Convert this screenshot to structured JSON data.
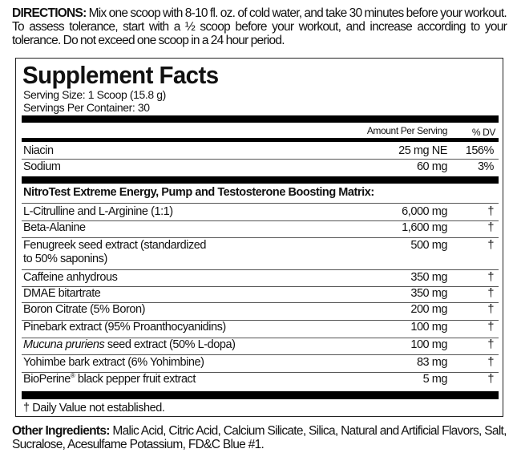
{
  "directions": {
    "label": "DIRECTIONS:",
    "text": "Mix one scoop with 8-10 fl. oz. of cold water, and take 30 minutes before your workout. To assess tolerance, start with a ½ scoop before your workout, and increase according to your tolerance. Do not exceed one scoop in a 24 hour period."
  },
  "facts": {
    "title": "Supplement Facts",
    "serving_size": "Serving Size: 1 Scoop (15.8 g)",
    "servings_per_container": "Servings Per Container: 30",
    "col_amount": "Amount Per Serving",
    "col_dv": "% DV",
    "nutrients": [
      {
        "name": "Niacin",
        "amount": "25 mg NE",
        "dv": "156%"
      },
      {
        "name": "Sodium",
        "amount": "60 mg",
        "dv": "3%"
      }
    ],
    "matrix_heading": "NitroTest Extreme Energy, Pump and Testosterone Boosting Matrix:",
    "ingredients": [
      {
        "name": "L-Citrulline and L-Arginine (1:1)",
        "amount": "6,000 mg",
        "dv": "†"
      },
      {
        "name": "Beta-Alanine",
        "amount": "1,600 mg",
        "dv": "†"
      },
      {
        "name": "Fenugreek seed extract (standardized",
        "name2": "to 50% saponins)",
        "amount": "500 mg",
        "dv": "†"
      },
      {
        "name": "Caffeine anhydrous",
        "amount": "350 mg",
        "dv": "†"
      },
      {
        "name": "DMAE bitartrate",
        "amount": "350 mg",
        "dv": "†"
      },
      {
        "name": "Boron Citrate (5% Boron)",
        "amount": "200 mg",
        "dv": "†"
      },
      {
        "name": "Pinebark extract (95% Proanthocyanidins)",
        "amount": "100 mg",
        "dv": "†"
      },
      {
        "name_italic": "Mucuna pruriens",
        "name": " seed extract (50% L-dopa)",
        "amount": "100 mg",
        "dv": "†"
      },
      {
        "name": "Yohimbe bark extract (6% Yohimbine)",
        "amount": "83 mg",
        "dv": "†"
      },
      {
        "name": "BioPerine",
        "sup": "®",
        "name2": " black pepper fruit extract",
        "amount": "5 mg",
        "dv": "†"
      }
    ],
    "footnote": "† Daily Value not established."
  },
  "other_ingredients": {
    "label": "Other Ingredients:",
    "text": "Malic Acid, Citric Acid, Calcium Silicate, Silica, Natural and Artificial Flavors, Salt, Sucralose, Acesulfame Potassium, FD&C Blue #1."
  }
}
